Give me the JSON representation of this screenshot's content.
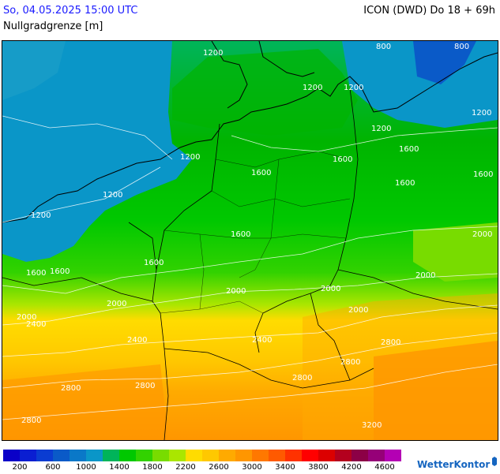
{
  "header": {
    "date": "So, 04.05.2025 15:00 UTC",
    "model": "ICON (DWD) Do 18 + 69h",
    "parameter": "Nullgradgrenze [m]"
  },
  "map": {
    "contour_labels": [
      "1200",
      "1200",
      "1200",
      "1200",
      "1200",
      "1200",
      "1200",
      "1200",
      "1600",
      "1600",
      "1600",
      "1600",
      "1600",
      "1600",
      "1600",
      "1600",
      "2000",
      "2000",
      "2000",
      "1600",
      "2000",
      "2000",
      "2000",
      "2000",
      "2400",
      "2400",
      "2400",
      "2800",
      "2800",
      "2800",
      "2800",
      "2800",
      "2800",
      "3200",
      "800",
      "800"
    ]
  },
  "legend": {
    "colors": [
      "#0a00c8",
      "#0a1ed2",
      "#0a3cd2",
      "#0a5ac8",
      "#0a78c8",
      "#0a96c8",
      "#00b45a",
      "#00c800",
      "#32d200",
      "#78dc00",
      "#aae600",
      "#ffdc00",
      "#ffc800",
      "#ffaa00",
      "#ff9600",
      "#ff7800",
      "#ff5a00",
      "#ff3200",
      "#ff0000",
      "#dc0000",
      "#b4001e",
      "#8c0046",
      "#960078",
      "#b400b4"
    ],
    "labels": [
      "200",
      "600",
      "1000",
      "1400",
      "1800",
      "2200",
      "2600",
      "3000",
      "3400",
      "3800",
      "4200",
      "4600"
    ]
  },
  "branding": {
    "logo_text": "WetterKontor"
  }
}
